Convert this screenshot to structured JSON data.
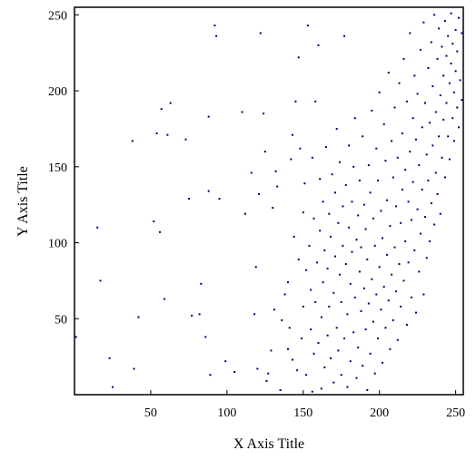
{
  "chart_data": {
    "type": "scatter",
    "title": "",
    "xlabel": "X Axis Title",
    "ylabel": "Y Axis Title",
    "xlim": [
      0,
      255
    ],
    "ylim": [
      0,
      255
    ],
    "xticks": [
      50,
      100,
      150,
      200,
      250
    ],
    "yticks": [
      50,
      100,
      150,
      200,
      250
    ],
    "grid": false,
    "legend": "none",
    "marker_color": "#00006e",
    "series": [
      {
        "points": [
          [
            1,
            38
          ],
          [
            23,
            24
          ],
          [
            25,
            5
          ],
          [
            17,
            75
          ],
          [
            15,
            110
          ],
          [
            38,
            167
          ],
          [
            39,
            17
          ],
          [
            42,
            51
          ],
          [
            52,
            114
          ],
          [
            54,
            172
          ],
          [
            56,
            107
          ],
          [
            57,
            188
          ],
          [
            59,
            63
          ],
          [
            61,
            171
          ],
          [
            63,
            192
          ],
          [
            73,
            168
          ],
          [
            75,
            129
          ],
          [
            77,
            52
          ],
          [
            82,
            53
          ],
          [
            83,
            73
          ],
          [
            86,
            38
          ],
          [
            88,
            134
          ],
          [
            88,
            183
          ],
          [
            89,
            13
          ],
          [
            92,
            243
          ],
          [
            93,
            236
          ],
          [
            95,
            129
          ],
          [
            99,
            22
          ],
          [
            105,
            15
          ],
          [
            110,
            186
          ],
          [
            112,
            119
          ],
          [
            116,
            146
          ],
          [
            118,
            53
          ],
          [
            119,
            84
          ],
          [
            120,
            17
          ],
          [
            121,
            132
          ],
          [
            122,
            238
          ],
          [
            124,
            185
          ],
          [
            125,
            160
          ],
          [
            126,
            9
          ],
          [
            127,
            14
          ],
          [
            129,
            29
          ],
          [
            130,
            123
          ],
          [
            131,
            56
          ],
          [
            132,
            147
          ],
          [
            133,
            137
          ],
          [
            135,
            3
          ],
          [
            136,
            49
          ],
          [
            138,
            66
          ],
          [
            140,
            30
          ],
          [
            140,
            74
          ],
          [
            141,
            44
          ],
          [
            142,
            155
          ],
          [
            143,
            23
          ],
          [
            143,
            171
          ],
          [
            144,
            104
          ],
          [
            145,
            193
          ],
          [
            146,
            16
          ],
          [
            147,
            222
          ],
          [
            147,
            89
          ],
          [
            148,
            162
          ],
          [
            149,
            37
          ],
          [
            150,
            58
          ],
          [
            150,
            120
          ],
          [
            151,
            139
          ],
          [
            152,
            13
          ],
          [
            152,
            82
          ],
          [
            153,
            243
          ],
          [
            154,
            98
          ],
          [
            155,
            43
          ],
          [
            155,
            69
          ],
          [
            156,
            2
          ],
          [
            156,
            156
          ],
          [
            157,
            27
          ],
          [
            157,
            116
          ],
          [
            158,
            193
          ],
          [
            158,
            61
          ],
          [
            159,
            87
          ],
          [
            160,
            34
          ],
          [
            160,
            230
          ],
          [
            161,
            108
          ],
          [
            161,
            142
          ],
          [
            162,
            4
          ],
          [
            162,
            51
          ],
          [
            163,
            74
          ],
          [
            163,
            127
          ],
          [
            164,
            18
          ],
          [
            164,
            95
          ],
          [
            165,
            163
          ],
          [
            166,
            39
          ],
          [
            166,
            83
          ],
          [
            167,
            119
          ],
          [
            167,
            58
          ],
          [
            168,
            24
          ],
          [
            168,
            104
          ],
          [
            169,
            145
          ],
          [
            170,
            8
          ],
          [
            170,
            67
          ],
          [
            171,
            91
          ],
          [
            171,
            133
          ],
          [
            172,
            44
          ],
          [
            172,
            175
          ],
          [
            173,
            113
          ],
          [
            173,
            29
          ],
          [
            174,
            79
          ],
          [
            174,
            153
          ],
          [
            175,
            13
          ],
          [
            175,
            61
          ],
          [
            176,
            98
          ],
          [
            176,
            124
          ],
          [
            177,
            37
          ],
          [
            177,
            236
          ],
          [
            178,
            86
          ],
          [
            178,
            138
          ],
          [
            179,
            5
          ],
          [
            179,
            53
          ],
          [
            180,
            110
          ],
          [
            180,
            164
          ],
          [
            181,
            22
          ],
          [
            181,
            73
          ],
          [
            182,
            94
          ],
          [
            182,
            127
          ],
          [
            183,
            41
          ],
          [
            183,
            150
          ],
          [
            184,
            64
          ],
          [
            184,
            182
          ],
          [
            185,
            11
          ],
          [
            185,
            102
          ],
          [
            186,
            118
          ],
          [
            186,
            31
          ],
          [
            187,
            81
          ],
          [
            187,
            141
          ],
          [
            188,
            55
          ],
          [
            188,
            97
          ],
          [
            189,
            19
          ],
          [
            189,
            170
          ],
          [
            190,
            70
          ],
          [
            190,
            125
          ],
          [
            191,
            43
          ],
          [
            191,
            109
          ],
          [
            192,
            3
          ],
          [
            192,
            89
          ],
          [
            193,
            151
          ],
          [
            193,
            60
          ],
          [
            194,
            27
          ],
          [
            194,
            133
          ],
          [
            195,
            76
          ],
          [
            195,
            187
          ],
          [
            196,
            48
          ],
          [
            196,
            116
          ],
          [
            197,
            14
          ],
          [
            197,
            98
          ],
          [
            198,
            162
          ],
          [
            198,
            66
          ],
          [
            199,
            37
          ],
          [
            199,
            141
          ],
          [
            200,
            84
          ],
          [
            200,
            199
          ],
          [
            201,
            56
          ],
          [
            201,
            121
          ],
          [
            202,
            21
          ],
          [
            202,
            103
          ],
          [
            203,
            178
          ],
          [
            203,
            71
          ],
          [
            204,
            44
          ],
          [
            204,
            154
          ],
          [
            205,
            92
          ],
          [
            205,
            128
          ],
          [
            206,
            62
          ],
          [
            206,
            212
          ],
          [
            207,
            30
          ],
          [
            207,
            111
          ],
          [
            208,
            167
          ],
          [
            208,
            79
          ],
          [
            209,
            49
          ],
          [
            209,
            143
          ],
          [
            210,
            97
          ],
          [
            210,
            189
          ],
          [
            211,
            68
          ],
          [
            211,
            124
          ],
          [
            212,
            156
          ],
          [
            212,
            36
          ],
          [
            213,
            86
          ],
          [
            213,
            205
          ],
          [
            214,
            113
          ],
          [
            214,
            58
          ],
          [
            215,
            172
          ],
          [
            215,
            135
          ],
          [
            216,
            75
          ],
          [
            216,
            221
          ],
          [
            217,
            101
          ],
          [
            217,
            148
          ],
          [
            218,
            46
          ],
          [
            218,
            193
          ],
          [
            219,
            127
          ],
          [
            219,
            87
          ],
          [
            220,
            160
          ],
          [
            220,
            238
          ],
          [
            221,
            64
          ],
          [
            221,
            115
          ],
          [
            222,
            182
          ],
          [
            222,
            140
          ],
          [
            223,
            95
          ],
          [
            223,
            210
          ],
          [
            224,
            54
          ],
          [
            224,
            168
          ],
          [
            225,
            122
          ],
          [
            225,
            198
          ],
          [
            226,
            81
          ],
          [
            226,
            151
          ],
          [
            227,
            227
          ],
          [
            227,
            106
          ],
          [
            228,
            176
          ],
          [
            228,
            135
          ],
          [
            229,
            66
          ],
          [
            229,
            245
          ],
          [
            230,
            192
          ],
          [
            230,
            117
          ],
          [
            231,
            158
          ],
          [
            231,
            90
          ],
          [
            232,
            215
          ],
          [
            232,
            141
          ],
          [
            233,
            179
          ],
          [
            233,
            101
          ],
          [
            234,
            232
          ],
          [
            234,
            126
          ],
          [
            235,
            164
          ],
          [
            235,
            203
          ],
          [
            236,
            250
          ],
          [
            236,
            112
          ],
          [
            237,
            186
          ],
          [
            237,
            146
          ],
          [
            238,
            221
          ],
          [
            238,
            132
          ],
          [
            239,
            241
          ],
          [
            239,
            170
          ],
          [
            240,
            197
          ],
          [
            240,
            119
          ],
          [
            241,
            229
          ],
          [
            241,
            156
          ],
          [
            242,
            210
          ],
          [
            242,
            181
          ],
          [
            243,
            246
          ],
          [
            243,
            143
          ],
          [
            244,
            223
          ],
          [
            244,
            192
          ],
          [
            245,
            170
          ],
          [
            245,
            236
          ],
          [
            246,
            205
          ],
          [
            246,
            155
          ],
          [
            247,
            251
          ],
          [
            247,
            218
          ],
          [
            248,
            182
          ],
          [
            248,
            231
          ],
          [
            249,
            199
          ],
          [
            249,
            167
          ],
          [
            250,
            240
          ],
          [
            250,
            213
          ],
          [
            251,
            189
          ],
          [
            251,
            226
          ],
          [
            252,
            176
          ],
          [
            252,
            248
          ],
          [
            253,
            207
          ],
          [
            254,
            238
          ],
          [
            254,
            194
          ]
        ]
      }
    ]
  }
}
